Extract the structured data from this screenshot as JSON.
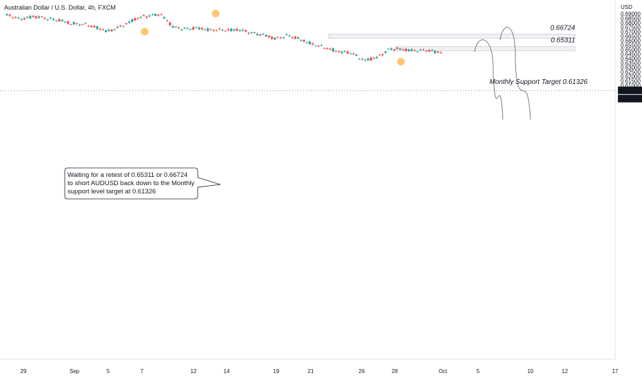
{
  "header": {
    "title": "Australian Dollar / U.S. Dollar, 4h, FXCM",
    "currency": "USD"
  },
  "chart_data": {
    "type": "candlestick",
    "instrument": "AUDUSD",
    "timeframe": "4h",
    "source": "FXCM",
    "ylim": [
      0.61,
      0.69
    ],
    "y_ticks": [
      "0.69000",
      "0.68500",
      "0.68000",
      "0.67500",
      "0.67000",
      "0.66500",
      "0.66000",
      "0.65500",
      "0.65000",
      "0.64500",
      "0.64000",
      "0.63500",
      "0.63000",
      "0.62500",
      "0.62000",
      "0.61500",
      "0.61000"
    ],
    "x_ticks": [
      "29",
      "Sep",
      "5",
      "7",
      "12",
      "14",
      "19",
      "21",
      "26",
      "28",
      "Oct",
      "5",
      "10",
      "12",
      "17"
    ],
    "price_badges": [
      "0.61326",
      "0.61326"
    ],
    "colors": {
      "up": "#26a69a",
      "down": "#ef5350",
      "zone": "#d1d4dc",
      "marker": "#ffb74d",
      "text": "#131722"
    },
    "anchors": [
      [
        0.6885,
        0.6855
      ],
      [
        0.684,
        0.6845
      ],
      [
        0.687,
        0.683
      ],
      [
        0.685,
        0.6855
      ],
      [
        0.683,
        0.68
      ],
      [
        0.679,
        0.68
      ],
      [
        0.6785,
        0.676
      ],
      [
        0.6745,
        0.674
      ],
      [
        0.6705,
        0.674
      ],
      [
        0.676,
        0.681
      ],
      [
        0.684,
        0.685
      ],
      [
        0.6875,
        0.689
      ],
      [
        0.69,
        0.679
      ],
      [
        0.6755,
        0.674
      ],
      [
        0.673,
        0.676
      ],
      [
        0.674,
        0.671
      ],
      [
        0.672,
        0.67
      ],
      [
        0.6715,
        0.673
      ],
      [
        0.6725,
        0.669
      ],
      [
        0.669,
        0.668
      ],
      [
        0.667,
        0.664
      ],
      [
        0.662,
        0.666
      ],
      [
        0.666,
        0.663
      ],
      [
        0.661,
        0.658
      ],
      [
        0.656,
        0.652
      ],
      [
        0.6515,
        0.649
      ],
      [
        0.648,
        0.647
      ],
      [
        0.646,
        0.642
      ],
      [
        0.638,
        0.641
      ],
      [
        0.641,
        0.647
      ],
      [
        0.651,
        0.65
      ],
      [
        0.65,
        0.647
      ],
      [
        0.649,
        0.65
      ],
      [
        0.649,
        0.646
      ],
      [
        0.647,
        0.6405
      ]
    ],
    "swing_markers": [
      [
        0.6903,
        "high"
      ],
      [
        0.67,
        "low"
      ],
      [
        0.6365,
        "low"
      ]
    ],
    "levels": [
      {
        "label": "0.66724",
        "from": 0.6664,
        "to": 0.6672
      },
      {
        "label": "0.65311",
        "from": 0.6524,
        "to": 0.6533
      }
    ],
    "support": {
      "label": "Monthly Support Target 0.61326",
      "value": 0.61326
    },
    "projections": [
      {
        "start": 0.6475,
        "peak": 0.653,
        "end": 0.618
      },
      {
        "start": 0.6605,
        "peak": 0.6672,
        "end": 0.618
      }
    ],
    "annotation": [
      "Waiting for a retest of 0.65311 or 0.66724",
      "to short AUDUSD back down to the Monthly",
      "support level target at 0.61326"
    ]
  }
}
